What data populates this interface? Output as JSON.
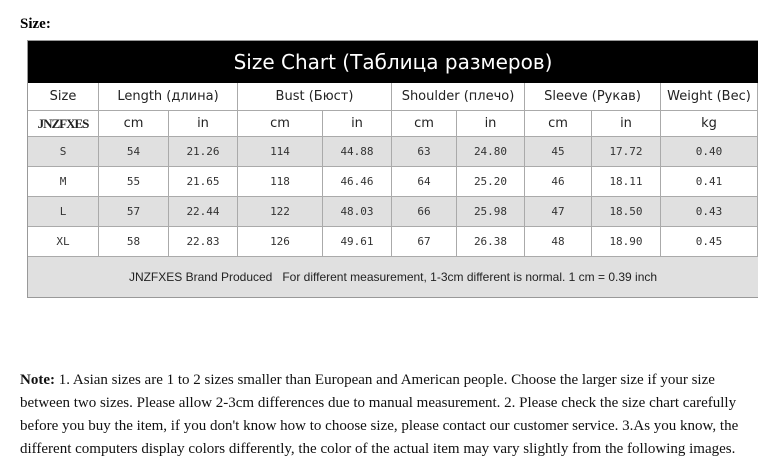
{
  "header": {
    "label": "Size:"
  },
  "table": {
    "title": "Size Chart (Таблица размеров)",
    "columns": [
      "Size",
      "Length (длина)",
      "Bust (Бюст)",
      "Shoulder (плечо)",
      "Sleeve (Рукав)",
      "Weight (Вес)"
    ],
    "units": [
      "JNZFXES",
      "cm",
      "in",
      "cm",
      "in",
      "cm",
      "in",
      "cm",
      "in",
      "kg"
    ],
    "rows": [
      [
        "S",
        "54",
        "21.26",
        "114",
        "44.88",
        "63",
        "24.80",
        "45",
        "17.72",
        "0.40"
      ],
      [
        "M",
        "55",
        "21.65",
        "118",
        "46.46",
        "64",
        "25.20",
        "46",
        "18.11",
        "0.41"
      ],
      [
        "L",
        "57",
        "22.44",
        "122",
        "48.03",
        "66",
        "25.98",
        "47",
        "18.50",
        "0.43"
      ],
      [
        "XL",
        "58",
        "22.83",
        "126",
        "49.61",
        "67",
        "26.38",
        "48",
        "18.90",
        "0.45"
      ]
    ],
    "footer": "JNZFXES Brand Produced   For different measurement, 1-3cm different is normal. 1 cm = 0.39 inch"
  },
  "note": {
    "label": "Note:",
    "text": " 1. Asian sizes are 1 to 2 sizes smaller than European and American people. Choose the larger size if your size between two sizes. Please allow 2-3cm differences due to manual measurement. 2. Please check the size chart carefully before you buy the item, if you don't know how to choose size, please contact our customer service. 3.As you know, the different computers display colors differently, the color of the actual item may vary slightly from the following images."
  }
}
